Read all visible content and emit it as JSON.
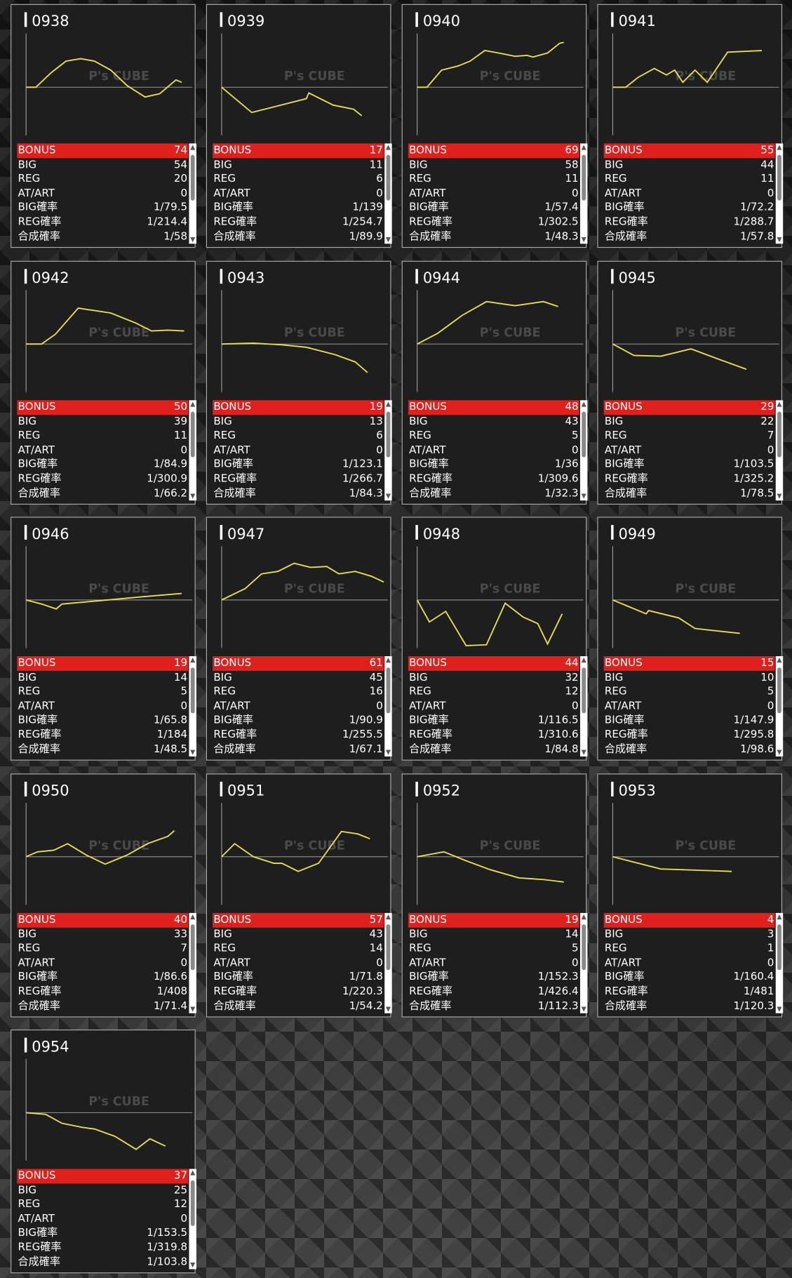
{
  "watermark": "P's CUBE",
  "row_labels": [
    "BONUS",
    "BIG",
    "REG",
    "AT/ART",
    "BIG確率",
    "REG確率",
    "合成確率"
  ],
  "machines": [
    {
      "number": "0938",
      "graph": {
        "x": [
          0,
          12,
          31,
          49,
          67,
          84,
          104,
          124,
          146,
          164,
          184,
          191
        ],
        "y": [
          0,
          0,
          18,
          32,
          35,
          32,
          21,
          2,
          -12,
          -8,
          9,
          6
        ]
      },
      "stats": [
        74,
        54,
        20,
        0,
        "1/79.5",
        "1/214.4",
        "1/58"
      ]
    },
    {
      "number": "0939",
      "graph": {
        "x": [
          0,
          37,
          104,
          107,
          137,
          162,
          172
        ],
        "y": [
          0,
          -31,
          -14,
          -7,
          -22,
          -27,
          -35
        ]
      },
      "stats": [
        17,
        11,
        6,
        0,
        "1/139",
        "1/254.7",
        "1/89.9"
      ]
    },
    {
      "number": "0940",
      "graph": {
        "x": [
          0,
          12,
          30,
          50,
          65,
          83,
          100,
          120,
          135,
          142,
          160,
          175,
          180
        ],
        "y": [
          0,
          0,
          21,
          26,
          32,
          45,
          42,
          38,
          39,
          37,
          42,
          54,
          55
        ]
      },
      "stats": [
        69,
        58,
        11,
        0,
        "1/57.4",
        "1/302.5",
        "1/48.3"
      ]
    },
    {
      "number": "0941",
      "graph": {
        "x": [
          0,
          16,
          31,
          51,
          66,
          76,
          86,
          101,
          116,
          141,
          183
        ],
        "y": [
          0,
          0,
          12,
          23,
          15,
          21,
          6,
          21,
          6,
          43,
          45
        ]
      },
      "stats": [
        55,
        44,
        11,
        0,
        "1/72.2",
        "1/288.7",
        "1/57.8"
      ]
    },
    {
      "number": "0942",
      "graph": {
        "x": [
          0,
          19,
          36,
          64,
          104,
          134,
          154,
          174,
          194
        ],
        "y": [
          0,
          0,
          12,
          44,
          38,
          26,
          16,
          17,
          16
        ]
      },
      "stats": [
        50,
        39,
        11,
        0,
        "1/84.9",
        "1/300.9",
        "1/66.2"
      ]
    },
    {
      "number": "0943",
      "graph": {
        "x": [
          0,
          39,
          74,
          104,
          139,
          164,
          179
        ],
        "y": [
          0,
          1,
          -1,
          -4,
          -13,
          -22,
          -35
        ]
      },
      "stats": [
        19,
        13,
        6,
        0,
        "1/123.1",
        "1/266.7",
        "1/84.3"
      ]
    },
    {
      "number": "0944",
      "graph": {
        "x": [
          0,
          25,
          55,
          85,
          120,
          155,
          173
        ],
        "y": [
          0,
          13,
          35,
          52,
          47,
          52,
          46
        ]
      },
      "stats": [
        48,
        43,
        5,
        0,
        "1/36",
        "1/309.6",
        "1/32.3"
      ]
    },
    {
      "number": "0945",
      "graph": {
        "x": [
          0,
          26,
          59,
          96,
          131,
          164
        ],
        "y": [
          0,
          -14,
          -15,
          -6,
          -19,
          -31
        ]
      },
      "stats": [
        29,
        22,
        7,
        0,
        "1/103.5",
        "1/325.2",
        "1/78.5"
      ]
    },
    {
      "number": "0946",
      "graph": {
        "x": [
          0,
          19,
          37,
          44,
          89,
          144,
          191
        ],
        "y": [
          0,
          -5,
          -11,
          -5,
          -1,
          4,
          8
        ]
      },
      "stats": [
        19,
        14,
        5,
        0,
        "1/65.8",
        "1/184",
        "1/48.5"
      ]
    },
    {
      "number": "0947",
      "graph": {
        "x": [
          0,
          29,
          49,
          69,
          89,
          109,
          129,
          144,
          164,
          184,
          199
        ],
        "y": [
          0,
          14,
          32,
          35,
          45,
          40,
          41,
          32,
          35,
          29,
          22
        ]
      },
      "stats": [
        61,
        45,
        16,
        0,
        "1/90.9",
        "1/255.5",
        "1/67.1"
      ]
    },
    {
      "number": "0948",
      "graph": {
        "x": [
          0,
          15,
          35,
          60,
          85,
          108,
          130,
          148,
          160,
          178
        ],
        "y": [
          0,
          -27,
          -14,
          -56,
          -55,
          -4,
          -21,
          -29,
          -54,
          -17
        ]
      },
      "stats": [
        44,
        32,
        12,
        0,
        "1/116.5",
        "1/310.6",
        "1/84.8"
      ]
    },
    {
      "number": "0949",
      "graph": {
        "x": [
          0,
          41,
          44,
          81,
          101,
          156
        ],
        "y": [
          0,
          -17,
          -13,
          -22,
          -35,
          -41
        ]
      },
      "stats": [
        15,
        10,
        5,
        0,
        "1/147.9",
        "1/295.8",
        "1/98.6"
      ]
    },
    {
      "number": "0950",
      "graph": {
        "x": [
          0,
          14,
          34,
          51,
          74,
          97,
          124,
          149,
          174,
          182
        ],
        "y": [
          0,
          6,
          8,
          16,
          2,
          -9,
          2,
          16,
          25,
          32
        ]
      },
      "stats": [
        40,
        33,
        7,
        0,
        "1/86.6",
        "1/408",
        "1/71.4"
      ]
    },
    {
      "number": "0951",
      "graph": {
        "x": [
          0,
          16,
          39,
          64,
          74,
          94,
          119,
          147,
          167,
          182
        ],
        "y": [
          0,
          16,
          0,
          -8,
          -8,
          -18,
          -8,
          31,
          28,
          22
        ]
      },
      "stats": [
        57,
        43,
        14,
        0,
        "1/71.8",
        "1/220.3",
        "1/54.2"
      ]
    },
    {
      "number": "0952",
      "graph": {
        "x": [
          0,
          33,
          60,
          90,
          125,
          155,
          180
        ],
        "y": [
          0,
          6,
          -5,
          -16,
          -26,
          -28,
          -31
        ]
      },
      "stats": [
        19,
        14,
        5,
        0,
        "1/152.3",
        "1/426.4",
        "1/112.3"
      ]
    },
    {
      "number": "0953",
      "graph": {
        "x": [
          0,
          59,
          146
        ],
        "y": [
          0,
          -15,
          -18
        ]
      },
      "stats": [
        4,
        3,
        1,
        0,
        "1/160.4",
        "1/481",
        "1/120.3"
      ]
    },
    {
      "number": "0954",
      "graph": {
        "x": [
          0,
          24,
          44,
          69,
          84,
          109,
          135,
          152,
          171
        ],
        "y": [
          0,
          -2,
          -13,
          -18,
          -20,
          -29,
          -45,
          -32,
          -41
        ]
      },
      "stats": [
        37,
        25,
        12,
        0,
        "1/153.5",
        "1/319.8",
        "1/103.8"
      ]
    }
  ]
}
